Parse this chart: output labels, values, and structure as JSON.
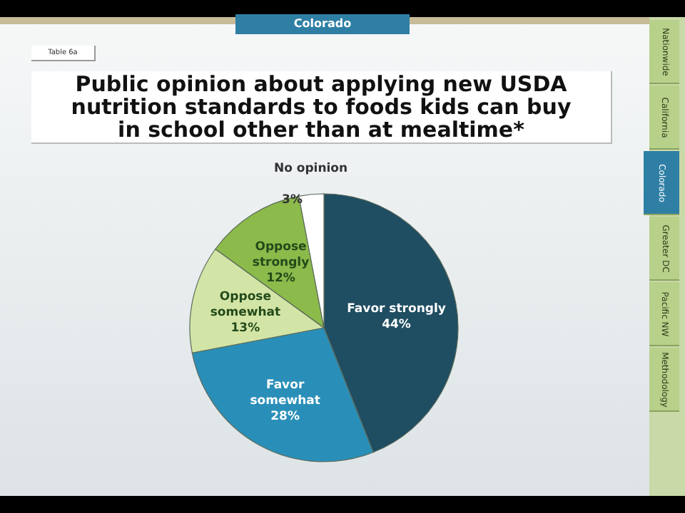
{
  "chart_data": {
    "type": "pie",
    "title": "Public opinion about applying new USDA nutrition standards to foods kids can buy in school other than at mealtime*",
    "categories": [
      "Favor strongly",
      "Favor somewhat",
      "Oppose somewhat",
      "Oppose strongly",
      "No opinion"
    ],
    "values": [
      44,
      28,
      13,
      12,
      3
    ],
    "colors": [
      "#1f4d62",
      "#2a8fb8",
      "#d3e5a6",
      "#8cba4b",
      "#ffffff"
    ],
    "value_labels": [
      "44%",
      "28%",
      "13%",
      "12%",
      "3%"
    ],
    "annotations": [
      "Colorado",
      "Table 6a",
      "Nationwide",
      "California",
      "Colorado",
      "Greater DC",
      "Pacific NW",
      "Methodology"
    ]
  }
}
